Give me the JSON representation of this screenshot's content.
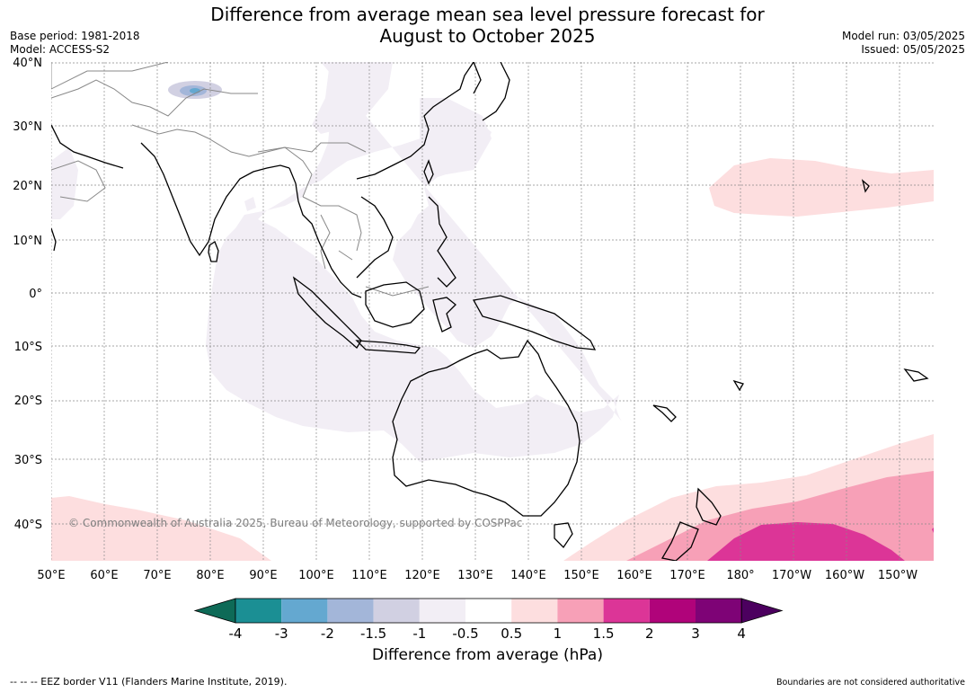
{
  "header": {
    "title_line1": "Difference from average mean sea level pressure forecast for",
    "title_line2": "August to October 2025",
    "base_period": "Base period: 1981-2018",
    "model": "Model: ACCESS-S2",
    "model_run": "Model run: 03/05/2025",
    "issued": "Issued: 05/05/2025"
  },
  "map": {
    "latitude_labels": [
      "40°N",
      "30°N",
      "20°N",
      "10°N",
      "0°",
      "10°S",
      "20°S",
      "30°S",
      "40°S"
    ],
    "longitude_labels": [
      "50°E",
      "60°E",
      "70°E",
      "80°E",
      "90°E",
      "100°E",
      "110°E",
      "120°E",
      "130°E",
      "140°E",
      "150°E",
      "160°E",
      "170°E",
      "180°",
      "170°W",
      "160°W",
      "150°W"
    ],
    "copyright": "© Commonwealth of Australia 2025, Bureau of Meteorology, supported by COSPPac"
  },
  "colorbar": {
    "tick_labels": [
      "-4",
      "-3",
      "-2",
      "-1.5",
      "-1",
      "-0.5",
      "0.5",
      "1",
      "1.5",
      "2",
      "3",
      "4"
    ],
    "label": "Difference from average (hPa)",
    "colors": [
      "#0e6a57",
      "#1b8f94",
      "#64a8d0",
      "#a3b6d9",
      "#d1d0e2",
      "#f2eef5",
      "#ffffff",
      "#fddedf",
      "#f7a0b7",
      "#dc3597",
      "#b0037a",
      "#7e0376",
      "#4c005f"
    ]
  },
  "footer": {
    "eez_note": "--  --  -- EEZ border V11 (Flanders Marine Institute, 2019).",
    "boundaries_note": "Boundaries are not considered authoritative"
  }
}
